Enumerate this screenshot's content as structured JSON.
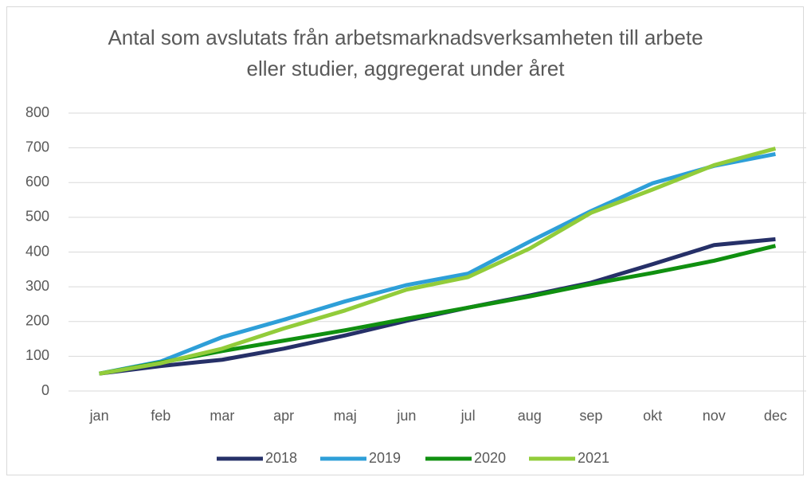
{
  "chart_data": {
    "type": "line",
    "title": "Antal som avslutats från arbetsmarknadsverksamheten till arbete eller studier, aggregerat under året",
    "categories": [
      "jan",
      "feb",
      "mar",
      "apr",
      "maj",
      "jun",
      "jul",
      "aug",
      "sep",
      "okt",
      "nov",
      "dec"
    ],
    "series": [
      {
        "name": "2018",
        "color": "#263068",
        "values": [
          50,
          72,
          90,
          122,
          160,
          202,
          240,
          275,
          312,
          365,
          420,
          437
        ]
      },
      {
        "name": "2019",
        "color": "#2e9fd8",
        "values": [
          50,
          85,
          155,
          205,
          258,
          305,
          338,
          430,
          518,
          598,
          648,
          682
        ]
      },
      {
        "name": "2020",
        "color": "#109010",
        "values": [
          50,
          82,
          115,
          145,
          175,
          208,
          240,
          272,
          308,
          340,
          375,
          418
        ]
      },
      {
        "name": "2021",
        "color": "#92cc3a",
        "values": [
          50,
          80,
          122,
          180,
          232,
          292,
          328,
          410,
          513,
          580,
          650,
          698
        ]
      }
    ],
    "ylim": [
      0,
      800
    ],
    "yticks": [
      0,
      100,
      200,
      300,
      400,
      500,
      600,
      700,
      800
    ],
    "grid": true,
    "legend": "bottom"
  }
}
